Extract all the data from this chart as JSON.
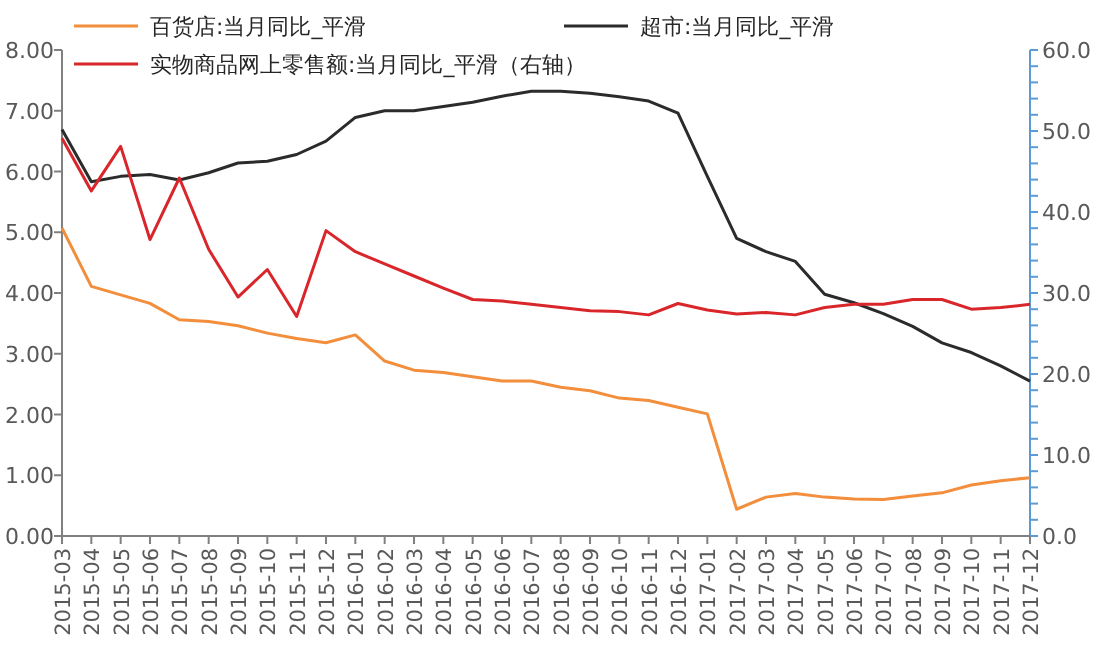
{
  "chart_data": {
    "type": "line",
    "categories": [
      "2015-03",
      "2015-04",
      "2015-05",
      "2015-06",
      "2015-07",
      "2015-08",
      "2015-09",
      "2015-10",
      "2015-11",
      "2015-12",
      "2016-01",
      "2016-02",
      "2016-03",
      "2016-04",
      "2016-05",
      "2016-06",
      "2016-07",
      "2016-08",
      "2016-09",
      "2016-10",
      "2016-11",
      "2016-12",
      "2017-01",
      "2017-02",
      "2017-03",
      "2017-04",
      "2017-05",
      "2017-06",
      "2017-07",
      "2017-08",
      "2017-09",
      "2017-10",
      "2017-11",
      "2017-12"
    ],
    "series": [
      {
        "name": "百货店:当月同比_平滑",
        "color": "#f28e3c",
        "values": [
          5.07,
          4.11,
          3.97,
          3.83,
          3.56,
          3.53,
          3.46,
          3.34,
          3.25,
          3.18,
          3.31,
          2.88,
          2.73,
          2.69,
          2.62,
          2.55,
          2.55,
          2.45,
          2.39,
          2.27,
          2.23,
          2.12,
          2.01,
          0.44,
          0.64,
          0.7,
          0.64,
          0.61,
          0.6,
          0.66,
          0.71,
          0.84,
          0.91,
          0.96
        ]
      },
      {
        "name": "超市:当月同比_平滑",
        "color": "#2b2b2b",
        "values": [
          6.69,
          5.83,
          5.92,
          5.95,
          5.86,
          5.98,
          6.14,
          6.17,
          6.28,
          6.5,
          6.89,
          7.0,
          7.0,
          7.07,
          7.14,
          7.24,
          7.32,
          7.32,
          7.29,
          7.23,
          7.16,
          6.96,
          5.92,
          4.9,
          4.68,
          4.52,
          3.98,
          3.84,
          3.66,
          3.45,
          3.18,
          3.02,
          2.8,
          2.55
        ]
      },
      {
        "name": "实物商品网上零售额:当月同比_平滑（右轴）",
        "color": "#d9262b",
        "axis": "y2",
        "values": [
          49.1,
          42.6,
          48.1,
          36.6,
          44.2,
          35.4,
          29.5,
          32.9,
          27.1,
          37.7,
          35.1,
          33.6,
          32.1,
          30.6,
          29.2,
          29.0,
          28.6,
          28.2,
          27.8,
          27.7,
          27.3,
          28.7,
          27.9,
          27.4,
          27.6,
          27.3,
          28.2,
          28.6,
          28.6,
          29.2,
          29.2,
          28.0,
          28.2,
          28.6
        ]
      }
    ],
    "ylim": [
      0,
      8
    ],
    "yticks": [
      {
        "value": 0,
        "label": "0.00"
      },
      {
        "value": 1,
        "label": "1.00"
      },
      {
        "value": 2,
        "label": "2.00"
      },
      {
        "value": 3,
        "label": "3.00"
      },
      {
        "value": 4,
        "label": "4.00"
      },
      {
        "value": 5,
        "label": "5.00"
      },
      {
        "value": 6,
        "label": "6.00"
      },
      {
        "value": 7,
        "label": "7.00"
      },
      {
        "value": 8,
        "label": "8.00"
      }
    ],
    "y2lim": [
      0,
      60
    ],
    "y2ticks": [
      {
        "value": 0,
        "label": "0.0"
      },
      {
        "value": 2,
        "label": null
      },
      {
        "value": 4,
        "label": null
      },
      {
        "value": 6,
        "label": null
      },
      {
        "value": 8,
        "label": null
      },
      {
        "value": 10,
        "label": "10.0"
      },
      {
        "value": 12,
        "label": null
      },
      {
        "value": 14,
        "label": null
      },
      {
        "value": 16,
        "label": null
      },
      {
        "value": 18,
        "label": null
      },
      {
        "value": 20,
        "label": "20.0"
      },
      {
        "value": 22,
        "label": null
      },
      {
        "value": 24,
        "label": null
      },
      {
        "value": 26,
        "label": null
      },
      {
        "value": 28,
        "label": null
      },
      {
        "value": 30,
        "label": "30.0"
      },
      {
        "value": 32,
        "label": null
      },
      {
        "value": 34,
        "label": null
      },
      {
        "value": 36,
        "label": null
      },
      {
        "value": 38,
        "label": null
      },
      {
        "value": 40,
        "label": "40.0"
      },
      {
        "value": 42,
        "label": null
      },
      {
        "value": 44,
        "label": null
      },
      {
        "value": 46,
        "label": null
      },
      {
        "value": 48,
        "label": null
      },
      {
        "value": 50,
        "label": "50.0"
      },
      {
        "value": 52,
        "label": null
      },
      {
        "value": 54,
        "label": null
      },
      {
        "value": 56,
        "label": null
      },
      {
        "value": 58,
        "label": null
      },
      {
        "value": 60,
        "label": "60.0"
      }
    ],
    "legend": "top",
    "grid": false
  }
}
